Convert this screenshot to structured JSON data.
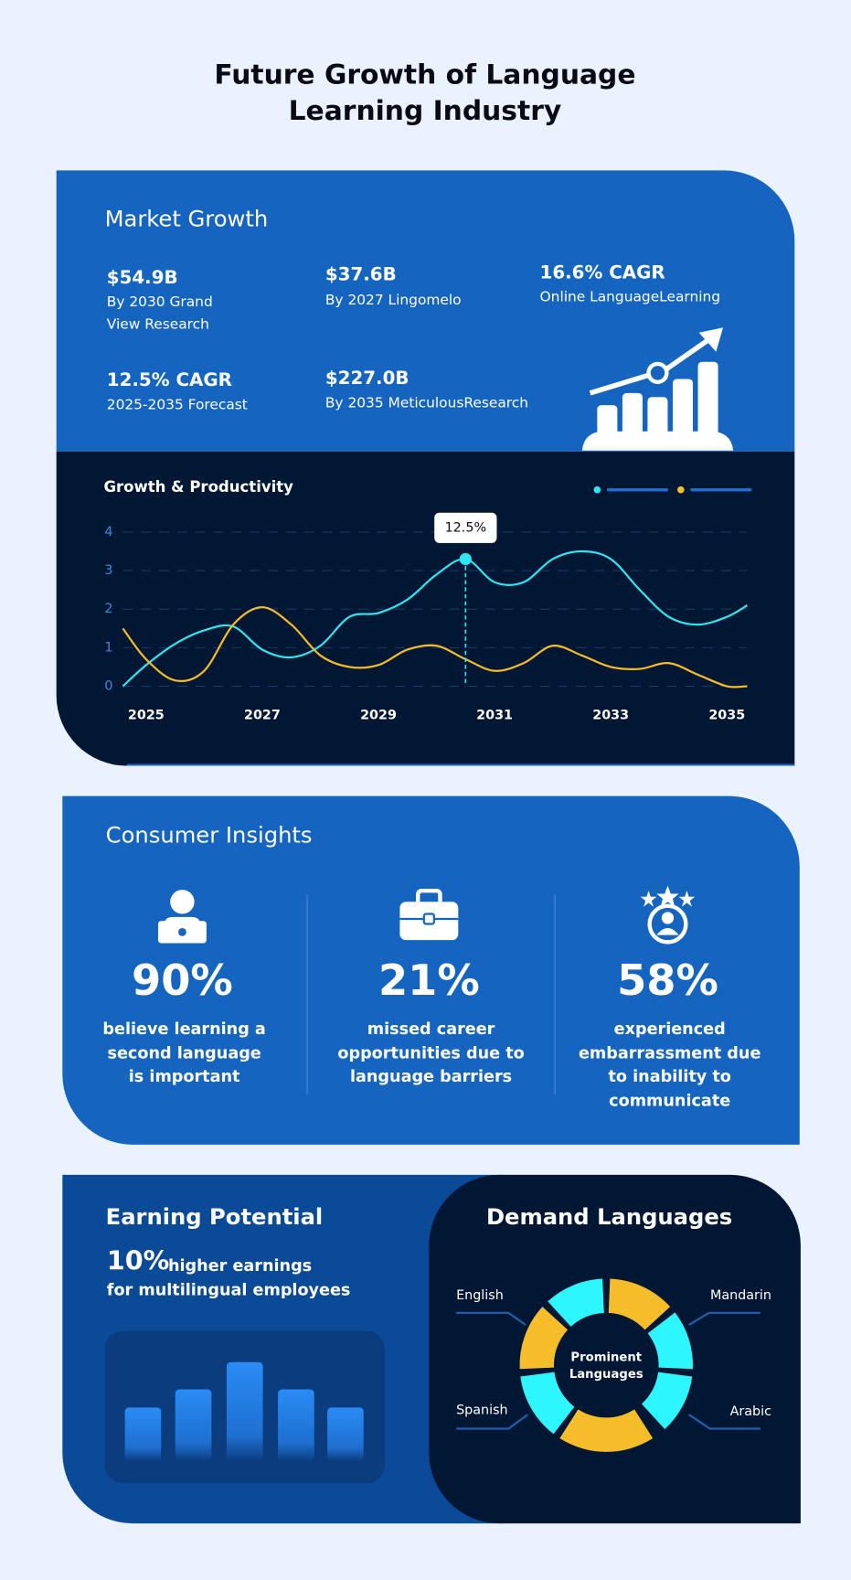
{
  "title_lines": [
    "Future Growth of Language",
    "Learning Industry"
  ],
  "market_growth": {
    "title": "Market Growth",
    "stats": [
      {
        "value": "$54.9B",
        "label_lines": [
          "By 2030 Grand",
          "View Research"
        ]
      },
      {
        "value": "$37.6B",
        "label_lines": [
          "By 2027 Lingomelo"
        ]
      },
      {
        "value": "16.6% CAGR",
        "label_lines": [
          "Online LanguageLearning"
        ]
      },
      {
        "value": "12.5% CAGR",
        "label_lines": [
          "2025-2035 Forecast"
        ]
      },
      {
        "value": "$227.0B",
        "label_lines": [
          "By 2035 MeticulousResearch"
        ]
      }
    ]
  },
  "chart_data": {
    "type": "line",
    "title": "Growth & Productivity",
    "x": [
      2024.6,
      2025,
      2025.5,
      2026,
      2026.5,
      2027,
      2027.5,
      2028,
      2028.5,
      2029,
      2029.5,
      2030,
      2030.5,
      2031,
      2031.5,
      2032,
      2032.5,
      2033,
      2033.5,
      2034,
      2034.5,
      2035,
      2035.35
    ],
    "series": [
      {
        "color": "#2ee6f0",
        "values": [
          0,
          0.55,
          1.1,
          1.45,
          1.55,
          0.95,
          0.75,
          1.05,
          1.8,
          1.9,
          2.25,
          2.9,
          3.3,
          2.7,
          2.7,
          3.3,
          3.5,
          3.3,
          2.5,
          1.8,
          1.6,
          1.8,
          2.1
        ]
      },
      {
        "color": "#f5bd2a",
        "values": [
          1.5,
          0.7,
          0.15,
          0.4,
          1.6,
          2.05,
          1.6,
          0.8,
          0.5,
          0.55,
          0.95,
          1.05,
          0.7,
          0.4,
          0.6,
          1.05,
          0.8,
          0.5,
          0.45,
          0.6,
          0.3,
          0,
          0
        ]
      }
    ],
    "xlim": [
      2024.6,
      2035.35
    ],
    "xticks": [
      2025,
      2027,
      2029,
      2031,
      2033,
      2035
    ],
    "ylim": [
      0,
      4
    ],
    "yticks": [
      0,
      1,
      2,
      3,
      4
    ],
    "grid": true,
    "annotations": [
      {
        "text": "12.5%",
        "x": 2030.5,
        "y": 3.3
      }
    ]
  },
  "consumer_insights": {
    "title": "Consumer Insights",
    "items": [
      {
        "value": "90%",
        "label_lines": [
          "believe learning a",
          "second language",
          "is important"
        ]
      },
      {
        "value": "21%",
        "label_lines": [
          "missed career",
          "opportunities due to",
          "language barriers"
        ]
      },
      {
        "value": "58%",
        "label_lines": [
          "experienced",
          "embarrassment due",
          "to inability to",
          "communicate"
        ]
      }
    ]
  },
  "earning_potential": {
    "title": "Earning Potential",
    "value": "10%",
    "text_lines": [
      "higher earnings",
      "for multilingual employees"
    ]
  },
  "demand_languages": {
    "title": "Demand Languages",
    "center_lines": [
      "Prominent",
      "Languages"
    ],
    "languages": [
      "English",
      "Mandarin",
      "Spanish",
      "Arabic"
    ]
  }
}
